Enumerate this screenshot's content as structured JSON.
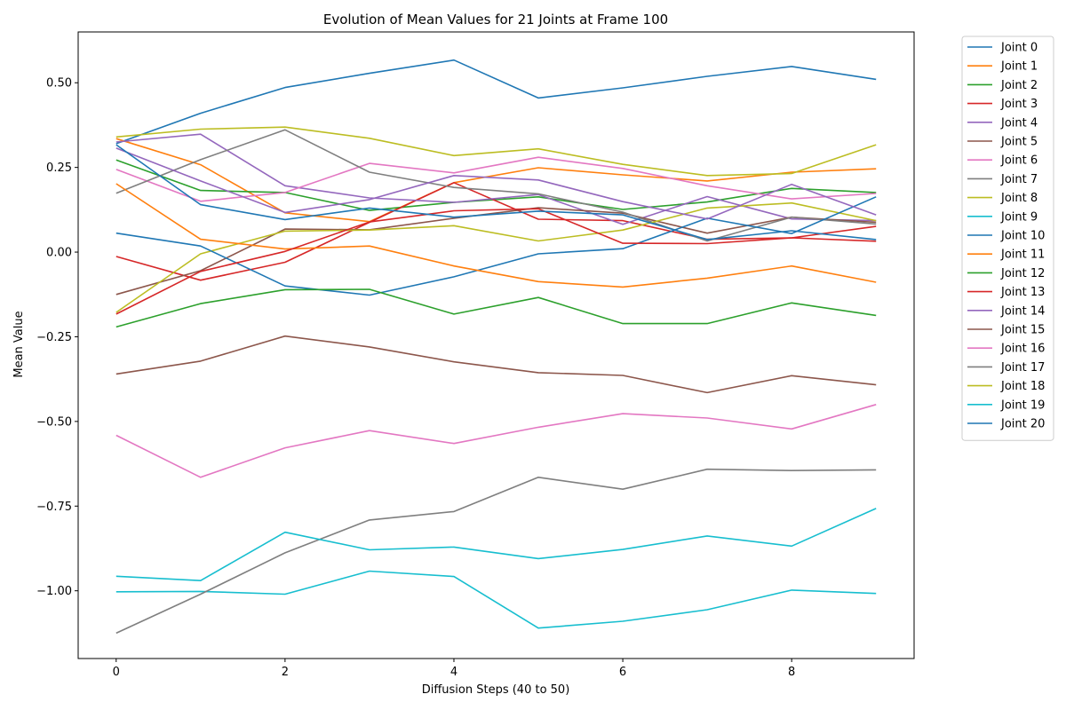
{
  "chart_data": {
    "type": "line",
    "title": "Evolution of Mean Values for 21 Joints at Frame 100",
    "xlabel": "Diffusion Steps (40 to 50)",
    "ylabel": "Mean Value",
    "xlim": [
      -0.45,
      9.45
    ],
    "ylim": [
      -1.2,
      0.65
    ],
    "x": [
      0,
      1,
      2,
      3,
      4,
      5,
      6,
      7,
      8,
      9
    ],
    "xticks": [
      0,
      2,
      4,
      6,
      8
    ],
    "xtick_labels": [
      "0",
      "2",
      "4",
      "6",
      "8"
    ],
    "yticks": [
      0.5,
      0.25,
      0.0,
      -0.25,
      -0.5,
      -0.75,
      -1.0
    ],
    "ytick_labels": [
      "0.50",
      "0.25",
      "0.00",
      "−0.25",
      "−0.50",
      "−0.75",
      "−1.00"
    ],
    "grid": false,
    "legend_position": "outside-right-top",
    "series": [
      {
        "name": "Joint 0",
        "color": "#1f77b4",
        "values": [
          0.32,
          0.41,
          0.486,
          0.528,
          0.567,
          0.455,
          0.485,
          0.519,
          0.548,
          0.51
        ]
      },
      {
        "name": "Joint 1",
        "color": "#ff7f0e",
        "values": [
          0.335,
          0.258,
          0.116,
          0.09,
          0.205,
          0.249,
          0.228,
          0.21,
          0.236,
          0.246
        ]
      },
      {
        "name": "Joint 2",
        "color": "#2ca02c",
        "values": [
          0.272,
          0.182,
          0.176,
          0.123,
          0.147,
          0.163,
          0.126,
          0.148,
          0.188,
          0.176
        ]
      },
      {
        "name": "Joint 3",
        "color": "#d62728",
        "values": [
          -0.013,
          -0.083,
          -0.03,
          0.088,
          0.205,
          0.097,
          0.093,
          0.038,
          0.042,
          0.032
        ]
      },
      {
        "name": "Joint 4",
        "color": "#9467bd",
        "values": [
          0.325,
          0.348,
          0.196,
          0.16,
          0.147,
          0.17,
          0.082,
          0.164,
          0.098,
          0.093
        ]
      },
      {
        "name": "Joint 5",
        "color": "#8c564b",
        "values": [
          -0.125,
          -0.055,
          0.068,
          0.066,
          0.1,
          0.131,
          0.115,
          0.056,
          0.103,
          0.088
        ]
      },
      {
        "name": "Joint 6",
        "color": "#e377c2",
        "values": [
          0.244,
          0.15,
          0.176,
          0.262,
          0.234,
          0.28,
          0.247,
          0.196,
          0.157,
          0.173
        ]
      },
      {
        "name": "Joint 7",
        "color": "#7f7f7f",
        "values": [
          0.174,
          0.273,
          0.361,
          0.236,
          0.191,
          0.172,
          0.118,
          0.033,
          0.103,
          0.083
        ]
      },
      {
        "name": "Joint 8",
        "color": "#bcbd22",
        "values": [
          -0.178,
          -0.005,
          0.062,
          0.065,
          0.078,
          0.033,
          0.065,
          0.13,
          0.145,
          0.093
        ]
      },
      {
        "name": "Joint 9",
        "color": "#17becf",
        "values": [
          -1.003,
          -1.002,
          -1.01,
          -0.942,
          -0.958,
          -1.11,
          -1.09,
          -1.056,
          -0.998,
          -1.008
        ]
      },
      {
        "name": "Joint 10",
        "color": "#1f77b4",
        "values": [
          0.056,
          0.018,
          -0.1,
          -0.127,
          -0.073,
          -0.005,
          0.01,
          0.1,
          0.055,
          0.163
        ]
      },
      {
        "name": "Joint 11",
        "color": "#ff7f0e",
        "values": [
          0.202,
          0.038,
          0.009,
          0.018,
          -0.041,
          -0.087,
          -0.103,
          -0.077,
          -0.041,
          -0.089
        ]
      },
      {
        "name": "Joint 12",
        "color": "#2ca02c",
        "values": [
          -0.221,
          -0.152,
          -0.111,
          -0.11,
          -0.183,
          -0.134,
          -0.211,
          -0.211,
          -0.15,
          -0.187
        ]
      },
      {
        "name": "Joint 13",
        "color": "#d62728",
        "values": [
          -0.183,
          -0.057,
          0.002,
          0.089,
          0.122,
          0.128,
          0.026,
          0.025,
          0.042,
          0.076
        ]
      },
      {
        "name": "Joint 14",
        "color": "#9467bd",
        "values": [
          0.307,
          0.21,
          0.117,
          0.155,
          0.226,
          0.213,
          0.149,
          0.098,
          0.2,
          0.11
        ]
      },
      {
        "name": "Joint 15",
        "color": "#8c564b",
        "values": [
          -0.36,
          -0.322,
          -0.248,
          -0.28,
          -0.324,
          -0.356,
          -0.364,
          -0.415,
          -0.365,
          -0.392
        ]
      },
      {
        "name": "Joint 16",
        "color": "#e377c2",
        "values": [
          -0.541,
          -0.665,
          -0.578,
          -0.527,
          -0.565,
          -0.517,
          -0.477,
          -0.49,
          -0.522,
          -0.45
        ]
      },
      {
        "name": "Joint 17",
        "color": "#7f7f7f",
        "values": [
          -1.125,
          -1.01,
          -0.888,
          -0.791,
          -0.766,
          -0.665,
          -0.7,
          -0.641,
          -0.645,
          -0.643
        ]
      },
      {
        "name": "Joint 18",
        "color": "#bcbd22",
        "values": [
          0.34,
          0.363,
          0.369,
          0.336,
          0.285,
          0.305,
          0.259,
          0.226,
          0.232,
          0.317
        ]
      },
      {
        "name": "Joint 19",
        "color": "#17becf",
        "values": [
          -0.957,
          -0.97,
          -0.827,
          -0.879,
          -0.871,
          -0.905,
          -0.878,
          -0.838,
          -0.868,
          -0.757
        ]
      },
      {
        "name": "Joint 20",
        "color": "#1f77b4",
        "values": [
          0.317,
          0.14,
          0.096,
          0.13,
          0.103,
          0.121,
          0.11,
          0.037,
          0.063,
          0.037
        ]
      }
    ]
  }
}
